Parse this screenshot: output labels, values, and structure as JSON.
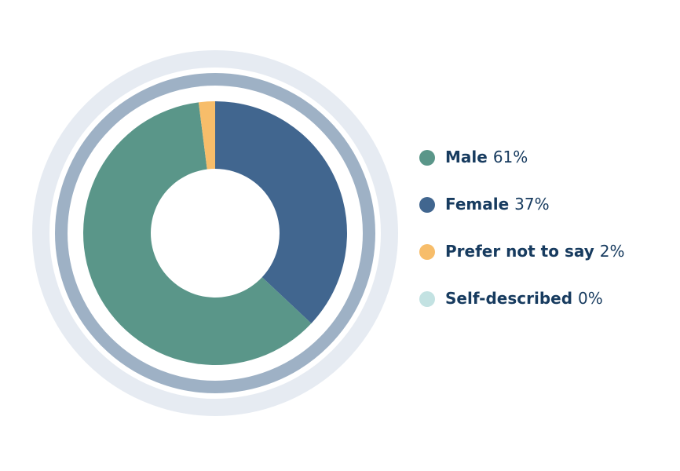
{
  "chart_data": {
    "type": "donut",
    "categories": [
      "Male",
      "Female",
      "Prefer not to say",
      "Self-described"
    ],
    "values": [
      61,
      37,
      2,
      0
    ],
    "value_labels": [
      "61%",
      "37%",
      "2%",
      "0%"
    ],
    "colors": [
      "#5a9689",
      "#41668f",
      "#f7bd6a",
      "#c3e2e2"
    ],
    "legend": "right"
  }
}
